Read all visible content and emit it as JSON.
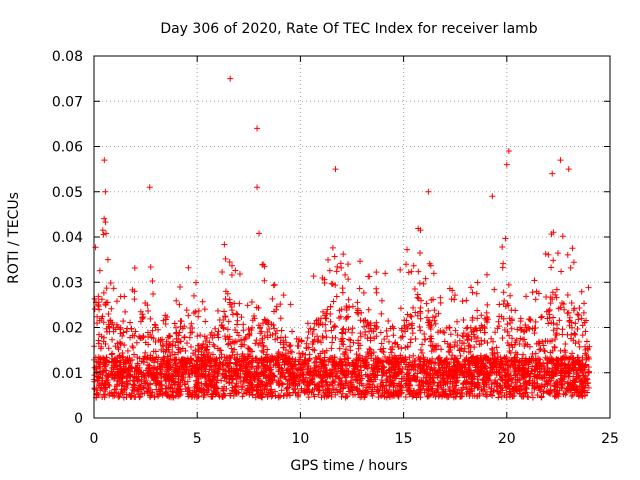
{
  "chart_data": {
    "type": "scatter",
    "title": "Day 306 of 2020, Rate Of TEC Index for receiver lamb",
    "xlabel": "GPS time / hours",
    "ylabel": "ROTI / TECUs",
    "xlim": [
      0,
      25
    ],
    "ylim": [
      0,
      0.08
    ],
    "grid": true,
    "marker": "+",
    "series_color": "#ff0000",
    "xticks": [
      0,
      5,
      10,
      15,
      20,
      25
    ],
    "yticks": [
      0,
      0.01,
      0.02,
      0.03,
      0.04,
      0.05,
      0.06,
      0.07,
      0.08
    ],
    "xtick_labels": [
      "0",
      "5",
      "10",
      "15",
      "20",
      "25"
    ],
    "ytick_labels": [
      "0",
      "0.01",
      "0.02",
      "0.03",
      "0.04",
      "0.05",
      "0.06",
      "0.07",
      "0.08"
    ],
    "data_range_x": [
      0,
      24
    ],
    "baseline_roti": 0.009,
    "notable_points": [
      {
        "x": 0.5,
        "y": 0.057
      },
      {
        "x": 0.55,
        "y": 0.05
      },
      {
        "x": 2.7,
        "y": 0.051
      },
      {
        "x": 6.6,
        "y": 0.075
      },
      {
        "x": 7.9,
        "y": 0.064
      },
      {
        "x": 7.9,
        "y": 0.051
      },
      {
        "x": 11.7,
        "y": 0.055
      },
      {
        "x": 16.2,
        "y": 0.05
      },
      {
        "x": 20.1,
        "y": 0.059
      },
      {
        "x": 20.0,
        "y": 0.056
      },
      {
        "x": 22.6,
        "y": 0.057
      },
      {
        "x": 23.0,
        "y": 0.055
      },
      {
        "x": 19.3,
        "y": 0.049
      },
      {
        "x": 22.2,
        "y": 0.054
      }
    ],
    "activity_envelope": [
      {
        "x": 0,
        "y": 0.038
      },
      {
        "x": 0.5,
        "y": 0.045
      },
      {
        "x": 1.0,
        "y": 0.03
      },
      {
        "x": 1.5,
        "y": 0.028
      },
      {
        "x": 2.0,
        "y": 0.035
      },
      {
        "x": 2.5,
        "y": 0.04
      },
      {
        "x": 3.0,
        "y": 0.03
      },
      {
        "x": 3.5,
        "y": 0.025
      },
      {
        "x": 4.0,
        "y": 0.03
      },
      {
        "x": 4.5,
        "y": 0.035
      },
      {
        "x": 5.0,
        "y": 0.03
      },
      {
        "x": 5.5,
        "y": 0.025
      },
      {
        "x": 6.0,
        "y": 0.03
      },
      {
        "x": 6.5,
        "y": 0.045
      },
      {
        "x": 7.0,
        "y": 0.035
      },
      {
        "x": 7.5,
        "y": 0.03
      },
      {
        "x": 8.0,
        "y": 0.042
      },
      {
        "x": 8.5,
        "y": 0.032
      },
      {
        "x": 9.0,
        "y": 0.03
      },
      {
        "x": 9.5,
        "y": 0.028
      },
      {
        "x": 10.0,
        "y": 0.025
      },
      {
        "x": 10.5,
        "y": 0.03
      },
      {
        "x": 11.0,
        "y": 0.035
      },
      {
        "x": 11.5,
        "y": 0.04
      },
      {
        "x": 12.0,
        "y": 0.038
      },
      {
        "x": 12.5,
        "y": 0.044
      },
      {
        "x": 13.0,
        "y": 0.035
      },
      {
        "x": 13.5,
        "y": 0.03
      },
      {
        "x": 14.0,
        "y": 0.04
      },
      {
        "x": 14.5,
        "y": 0.03
      },
      {
        "x": 15.0,
        "y": 0.035
      },
      {
        "x": 15.5,
        "y": 0.045
      },
      {
        "x": 16.0,
        "y": 0.04
      },
      {
        "x": 16.5,
        "y": 0.032
      },
      {
        "x": 17.0,
        "y": 0.03
      },
      {
        "x": 17.5,
        "y": 0.028
      },
      {
        "x": 18.0,
        "y": 0.03
      },
      {
        "x": 18.5,
        "y": 0.03
      },
      {
        "x": 19.0,
        "y": 0.038
      },
      {
        "x": 19.5,
        "y": 0.04
      },
      {
        "x": 20.0,
        "y": 0.04
      },
      {
        "x": 20.5,
        "y": 0.035
      },
      {
        "x": 21.0,
        "y": 0.03
      },
      {
        "x": 21.5,
        "y": 0.032
      },
      {
        "x": 22.0,
        "y": 0.04
      },
      {
        "x": 22.5,
        "y": 0.045
      },
      {
        "x": 23.0,
        "y": 0.042
      },
      {
        "x": 23.5,
        "y": 0.033
      },
      {
        "x": 24.0,
        "y": 0.03
      }
    ]
  }
}
